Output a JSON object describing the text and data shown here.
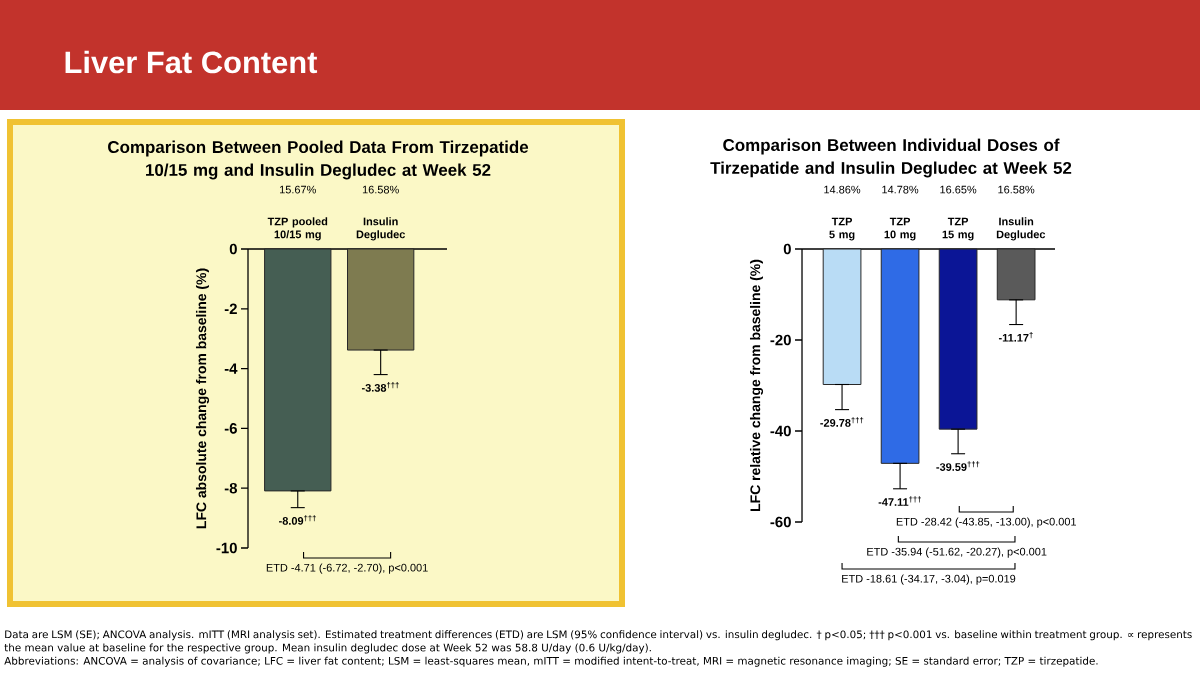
{
  "chart_data": [
    {
      "type": "bar",
      "title": "Comparison Between Pooled Data From Tirzepatide 10/15 mg and Insulin Degludec at Week 52",
      "ylabel": "LFC absolute change from baseline (%)",
      "categories": [
        "TZP pooled 10/15 mg",
        "Insulin Degludec"
      ],
      "values": [
        -8.09,
        -3.38
      ],
      "colors": [
        "#455e53",
        "#7e7b50"
      ],
      "errors": [
        [
          -8.65,
          -8.09
        ],
        [
          -4.2,
          -3.38
        ]
      ],
      "value_labels": [
        "-8.09$^{†††}$",
        "-3.38$^{†††}$"
      ],
      "ylim": [
        -10,
        0
      ],
      "yticks": [
        -10,
        -8,
        -6,
        -4,
        -2,
        0
      ],
      "annotations": [
        "15.67%",
        "16.58%",
        "ETD -4.71 (-6.72, -2.70), p<0.001"
      ]
    },
    {
      "type": "bar",
      "title": "Comparison Between Individual Doses of Tirzepatide and Insulin Degludec at Week 52",
      "ylabel": "LFC relative change from baseline (%)",
      "categories": [
        "TZP 5 mg",
        "TZP 10 mg",
        "TZP 15 mg",
        "Insulin Degludec"
      ],
      "values": [
        -29.78,
        -47.11,
        -39.59,
        -11.17
      ],
      "colors": [
        "#b9dcf5",
        "#2f6be6",
        "#0b1596",
        "#5a5a5a"
      ],
      "errors": [
        [
          -35.3,
          -29.78
        ],
        [
          -52.7,
          -47.11
        ],
        [
          -45.0,
          -39.59
        ],
        [
          -16.6,
          -11.17
        ]
      ],
      "value_labels": [
        "-29.78$^{†††}$",
        "-47.11$^{†††}$",
        "-39.59$^{†††}$",
        "-11.17$^{†}$"
      ],
      "ylim": [
        -60,
        0
      ],
      "yticks": [
        -60,
        -40,
        -20,
        0
      ],
      "annotations": [
        "14.86%",
        "14.78%",
        "16.65%",
        "16.58%",
        "ETD -28.42 (-43.85, -13.00), p<0.001",
        "ETD -35.94 (-51.62, -20.27), p<0.001",
        "ETD -18.61 (-34.17, -3.04), p=0.019"
      ]
    },
    {
      "type": "other",
      "title": "Liver Fat Content",
      "annotations": [
        "Data are LSM (SE); ANCOVA analysis. mITT (MRI analysis set). Estimated treatment differences (ETD) are LSM (95% confidence interval) vs. insulin degludec. † p<0.05; ††† p<0.001 vs. baseline within treatment group. ∝ represents the mean value at baseline for the respective group. Mean insulin degludec dose at Week 52 was 58.8 U/day (0.6 U/kg/day).",
        "Abbreviations: ANCOVA = analysis of covariance; LFC = liver fat content; LSM = least-squares mean, mITT = modified intent-to-treat, MRI = magnetic resonance imaging; SE = standard error; TZP = tirzepatide."
      ]
    }
  ]
}
